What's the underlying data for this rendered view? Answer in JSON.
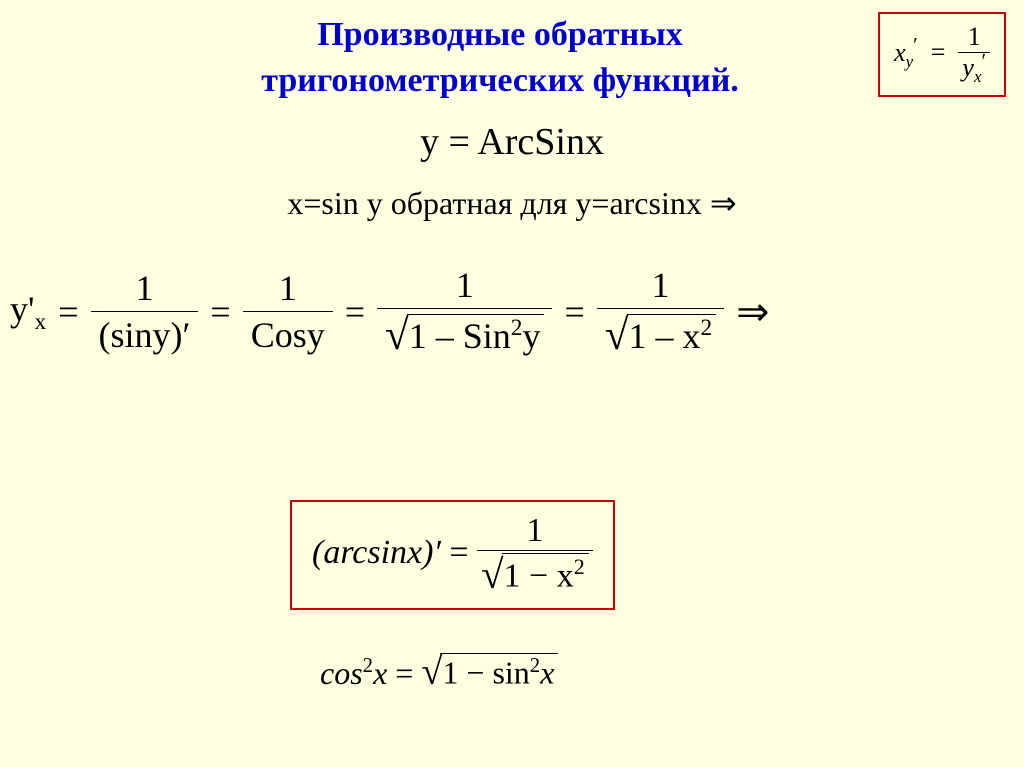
{
  "title_line1": "Производные обратных",
  "title_line2": "тригонометрических функций.",
  "top_formula": {
    "lhs_base": "x",
    "lhs_sub": "y",
    "num": "1",
    "den_base": "y",
    "den_sub": "x"
  },
  "line1": "y = ArcSinx",
  "line2": "x=sin y обратная для y=arcsinx ⇒",
  "main_eq": {
    "lhs": "y'",
    "lhs_sub": "x",
    "f1_num": "1",
    "f1_den": "(siny)′",
    "f2_num": "1",
    "f2_den": "Cosy",
    "f3_num": "1",
    "f3_den_inner": "1 – Sin",
    "f3_den_exp": "2",
    "f3_den_tail": "y",
    "f4_num": "1",
    "f4_den_inner": "1 – x",
    "f4_den_exp": "2"
  },
  "result": {
    "lhs": "(arcsinx)′",
    "num": "1",
    "den_inner": "1 − x",
    "den_exp": "2"
  },
  "identity": {
    "lhs_base": "cos",
    "lhs_exp": "2",
    "lhs_var": "x",
    "rhs_inner": "1 − sin",
    "rhs_exp": "2",
    "rhs_var": "x"
  },
  "colors": {
    "background": "#fefee0",
    "title": "#0000cc",
    "box_border": "#cc0000",
    "text": "#000000"
  },
  "fonts": {
    "title_size_pt": 26,
    "body_size_pt": 28,
    "family": "Times New Roman"
  }
}
